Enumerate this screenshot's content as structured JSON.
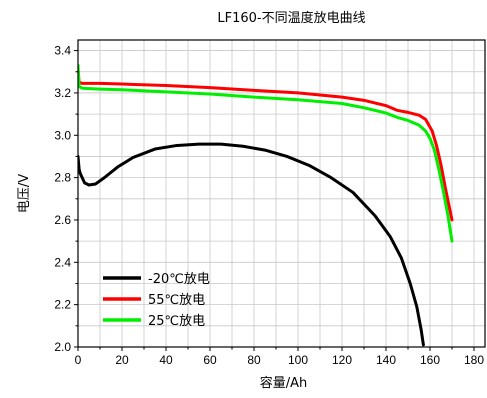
{
  "chart_data": {
    "type": "line",
    "title": "LF160-不同温度放电曲线",
    "xlabel": "容量/Ah",
    "ylabel": "电压/V",
    "xlim": [
      0,
      185
    ],
    "ylim": [
      2.0,
      3.45
    ],
    "xticks": [
      0,
      20,
      40,
      60,
      80,
      100,
      120,
      140,
      160,
      180
    ],
    "yticks": [
      2.0,
      2.2,
      2.4,
      2.6,
      2.8,
      3.0,
      3.2,
      3.4
    ],
    "xtick_labels": [
      "0",
      "20",
      "40",
      "60",
      "80",
      "100",
      "120",
      "140",
      "160",
      "180"
    ],
    "ytick_labels": [
      "2.0",
      "2.2",
      "2.4",
      "2.6",
      "2.8",
      "3.0",
      "3.2",
      "3.4"
    ],
    "grid": true,
    "legend_position": "bottom-left",
    "series": [
      {
        "name": "-20℃放电",
        "color": "#000000",
        "points": [
          [
            0,
            2.9
          ],
          [
            0.5,
            2.84
          ],
          [
            1,
            2.82
          ],
          [
            3,
            2.775
          ],
          [
            5,
            2.765
          ],
          [
            8,
            2.77
          ],
          [
            12,
            2.8
          ],
          [
            18,
            2.85
          ],
          [
            25,
            2.895
          ],
          [
            35,
            2.935
          ],
          [
            45,
            2.952
          ],
          [
            55,
            2.958
          ],
          [
            65,
            2.958
          ],
          [
            75,
            2.948
          ],
          [
            85,
            2.93
          ],
          [
            95,
            2.9
          ],
          [
            105,
            2.858
          ],
          [
            115,
            2.8
          ],
          [
            125,
            2.73
          ],
          [
            135,
            2.62
          ],
          [
            142,
            2.52
          ],
          [
            147,
            2.42
          ],
          [
            151,
            2.3
          ],
          [
            154,
            2.19
          ],
          [
            156,
            2.08
          ],
          [
            157,
            2.01
          ]
        ]
      },
      {
        "name": "55℃放电",
        "color": "#ff0000",
        "points": [
          [
            0,
            3.31
          ],
          [
            0.5,
            3.25
          ],
          [
            2,
            3.245
          ],
          [
            10,
            3.245
          ],
          [
            20,
            3.242
          ],
          [
            40,
            3.235
          ],
          [
            60,
            3.225
          ],
          [
            80,
            3.212
          ],
          [
            100,
            3.2
          ],
          [
            120,
            3.18
          ],
          [
            130,
            3.165
          ],
          [
            140,
            3.14
          ],
          [
            145,
            3.118
          ],
          [
            150,
            3.108
          ],
          [
            155,
            3.095
          ],
          [
            158,
            3.075
          ],
          [
            161,
            3.02
          ],
          [
            163,
            2.95
          ],
          [
            165,
            2.86
          ],
          [
            167,
            2.75
          ],
          [
            169,
            2.65
          ],
          [
            170,
            2.6
          ]
        ]
      },
      {
        "name": "25℃放电",
        "color": "#00ee00",
        "points": [
          [
            0,
            3.33
          ],
          [
            0.5,
            3.23
          ],
          [
            2,
            3.222
          ],
          [
            10,
            3.218
          ],
          [
            20,
            3.215
          ],
          [
            40,
            3.205
          ],
          [
            60,
            3.195
          ],
          [
            80,
            3.18
          ],
          [
            100,
            3.168
          ],
          [
            120,
            3.15
          ],
          [
            130,
            3.13
          ],
          [
            140,
            3.105
          ],
          [
            145,
            3.085
          ],
          [
            150,
            3.07
          ],
          [
            155,
            3.048
          ],
          [
            158,
            3.02
          ],
          [
            160,
            2.985
          ],
          [
            162,
            2.93
          ],
          [
            164,
            2.84
          ],
          [
            166,
            2.74
          ],
          [
            168,
            2.63
          ],
          [
            170,
            2.5
          ]
        ]
      }
    ]
  }
}
